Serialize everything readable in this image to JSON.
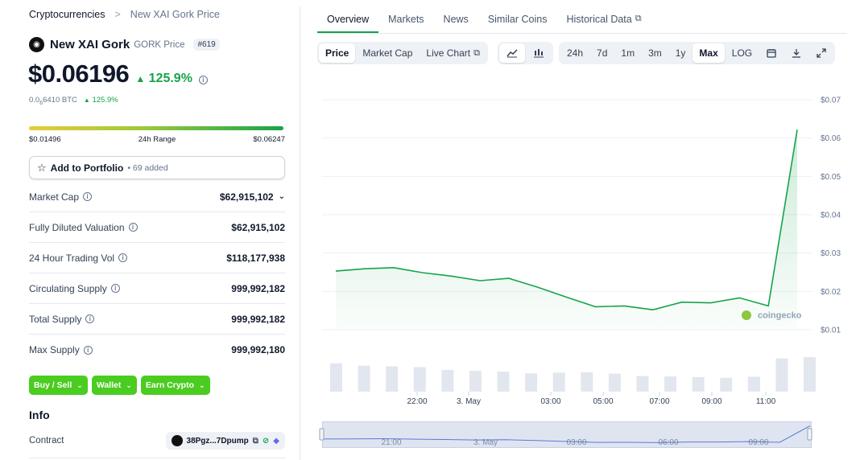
{
  "breadcrumb": {
    "root": "Cryptocurrencies",
    "sep": ">",
    "current": "New XAI Gork Price"
  },
  "coin": {
    "name": "New XAI Gork",
    "symbol": "GORK Price",
    "rank": "#619"
  },
  "price": {
    "value": "$0.06196",
    "change": "125.9%",
    "btc_prefix": "0.0",
    "btc_sub": "6",
    "btc_rest": "6410 BTC",
    "btc_change": "125.9%"
  },
  "range": {
    "low": "$0.01496",
    "label": "24h Range",
    "high": "$0.06247"
  },
  "portfolio": {
    "label": "Add to Portfolio",
    "count": "• 69 added"
  },
  "stats": [
    {
      "label": "Market Cap",
      "value": "$62,915,102"
    },
    {
      "label": "Fully Diluted Valuation",
      "value": "$62,915,102"
    },
    {
      "label": "24 Hour Trading Vol",
      "value": "$118,177,938"
    },
    {
      "label": "Circulating Supply",
      "value": "999,992,182"
    },
    {
      "label": "Total Supply",
      "value": "999,992,182"
    },
    {
      "label": "Max Supply",
      "value": "999,992,180"
    }
  ],
  "actions": [
    "Buy / Sell",
    "Wallet",
    "Earn Crypto"
  ],
  "info": {
    "title": "Info",
    "contract_label": "Contract",
    "contract_value": "38Pgz...7Dpump"
  },
  "tabs": [
    "Overview",
    "Markets",
    "News",
    "Similar Coins",
    "Historical Data"
  ],
  "chart_modes": [
    "Price",
    "Market Cap",
    "Live Chart"
  ],
  "time_ranges": [
    "24h",
    "7d",
    "1m",
    "3m",
    "1y",
    "Max",
    "LOG"
  ],
  "watermark": "coingecko",
  "colors": {
    "accent": "#16a34a",
    "button_green": "#4bcc20",
    "volume_bar": "#e2e6ee"
  },
  "chart_data": {
    "type": "line",
    "y_axis": {
      "min": 0.01,
      "max": 0.07,
      "ticks": [
        "$0.01",
        "$0.02",
        "$0.03",
        "$0.04",
        "$0.05",
        "$0.06",
        "$0.07"
      ]
    },
    "x_ticks": [
      "22:00",
      "3. May",
      "03:00",
      "05:00",
      "07:00",
      "09:00",
      "11:00"
    ],
    "series": [
      {
        "values": [
          0.0253,
          0.0259,
          0.0262,
          0.0249,
          0.024,
          0.0228,
          0.0234,
          0.0211,
          0.0185,
          0.016,
          0.0162,
          0.0152,
          0.0172,
          0.017,
          0.0183,
          0.0162,
          0.0622
        ]
      }
    ],
    "volume_relative": [
      0.82,
      0.75,
      0.73,
      0.71,
      0.63,
      0.6,
      0.58,
      0.53,
      0.55,
      0.56,
      0.52,
      0.45,
      0.44,
      0.42,
      0.4,
      0.43,
      0.96,
      1.0
    ],
    "navigator_x_ticks": [
      "21:00",
      "3. May",
      "03:00",
      "06:00",
      "09:00"
    ],
    "grid": true
  }
}
